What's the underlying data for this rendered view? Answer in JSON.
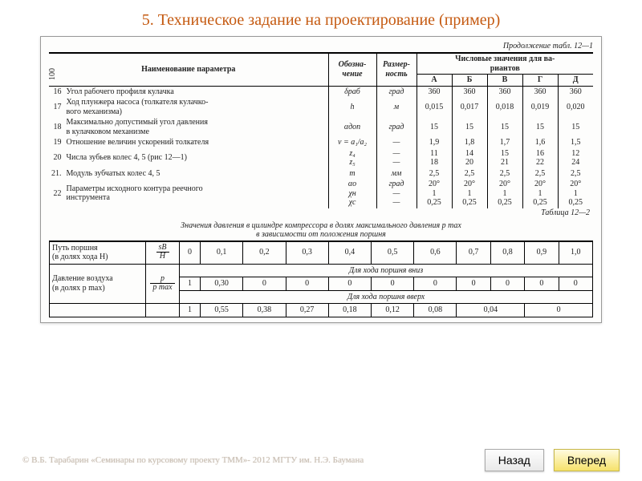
{
  "title": "5. Техническое задание на проектирование (пример)",
  "sideNum": "100",
  "continuation": "Продолжение табл. 12—1",
  "header": {
    "name": "Наименование параметра",
    "obzn": "Обозна-\nчение",
    "razm": "Размер-\nность",
    "vars_title": "Числовые значения для ва-\nриантов",
    "vars": [
      "А",
      "Б",
      "В",
      "Г",
      "Д"
    ]
  },
  "rows": [
    {
      "n": "16",
      "name": "Угол рабочего профиля кулачка",
      "ob": "δраб",
      "rz": "град",
      "v": [
        "360",
        "360",
        "360",
        "360",
        "360"
      ]
    },
    {
      "n": "17",
      "name": "Ход плунжера насоса (толкателя кулачко-\nвого механизма)",
      "ob": "h",
      "rz": "м",
      "v": [
        "0,015",
        "0,017",
        "0,018",
        "0,019",
        "0,020"
      ]
    },
    {
      "n": "18",
      "name": "Максимально допустимый угол давления\nв кулачковом механизме",
      "ob": "αдоп",
      "rz": "град",
      "v": [
        "15",
        "15",
        "15",
        "15",
        "15"
      ]
    },
    {
      "n": "19",
      "name": "Отношение величин ускорений толкателя",
      "ob": "ν = a₁/a₂",
      "rz": "—",
      "v": [
        "1,9",
        "1,8",
        "1,7",
        "1,6",
        "1,5"
      ]
    },
    {
      "n": "20",
      "name": "Числа зубьев колес 4, 5 (рис 12—1)",
      "ob": "z₄\nz₅",
      "rz": "—\n—",
      "v": [
        "11\n18",
        "14\n20",
        "15\n21",
        "16\n22",
        "12\n24"
      ]
    },
    {
      "n": "21.",
      "name": "Модуль зубчатых колес 4, 5",
      "ob": "m",
      "rz": "мм",
      "v": [
        "2,5",
        "2,5",
        "2,5",
        "2,5",
        "2,5"
      ]
    },
    {
      "n": "22",
      "name": "Параметры исходного контура реечного\nинструмента",
      "ob": "αо\nχн\nχс",
      "rz": "град\n—\n—",
      "v": [
        "20°\n1\n0,25",
        "20°\n1\n0,25",
        "20°\n1\n0,25",
        "20°\n1\n0,25",
        "20°\n1\n0,25"
      ]
    }
  ],
  "table2_label": "Таблица 12—2",
  "table2_subtitle": "Значения давления в цилиндре компрессора в долях максимального давления p max\nв зависимости от положения поршня",
  "t2": {
    "row1_label": "Путь поршня\n(в долях хода H)",
    "row1_frac_num": "sB",
    "row1_frac_den": "H",
    "row1_vals": [
      "0",
      "0,1",
      "0,2",
      "0,3",
      "0,4",
      "0,5",
      "0,6",
      "0,7",
      "0,8",
      "0,9",
      "1,0"
    ],
    "span_down": "Для хода поршня вниз",
    "row2_label": "Давление воздуха\n(в долях p max)",
    "row2_frac_num": "p",
    "row2_frac_den": "p max",
    "row2_vals_down": [
      "1",
      "0,30",
      "0",
      "0",
      "0",
      "0",
      "0",
      "0",
      "0",
      "0",
      "0"
    ],
    "span_up": "Для хода поршня вверх",
    "row2_vals_up": [
      "1",
      "0,55",
      "0,38",
      "0,27",
      "0,18",
      "0,12",
      "0,08",
      "",
      "0,04",
      "",
      "0"
    ]
  },
  "copyright": "© В.Б. Тарабарин «Семинары по курсовому проекту ТММ»- 2012 МГТУ им. Н.Э. Баумана",
  "nav": {
    "back": "Назад",
    "fwd": "Вперед"
  }
}
